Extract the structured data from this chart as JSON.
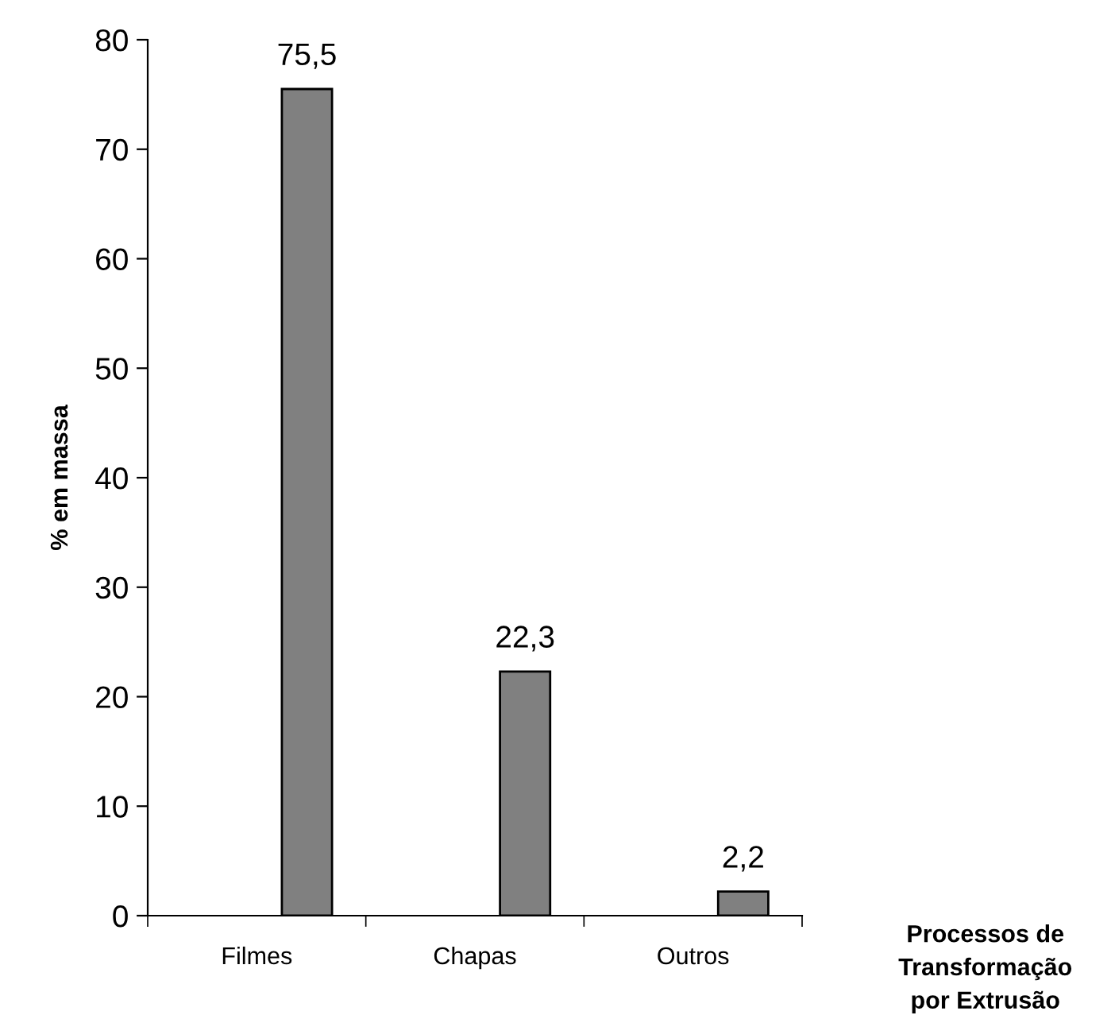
{
  "chart_data": {
    "type": "bar",
    "ylabel": "% em massa",
    "xlabel": "Processos de\nTransformação\npor Extrusão",
    "categories": [
      "Filmes",
      "Chapas",
      "Outros"
    ],
    "values": [
      75.5,
      22.3,
      2.2
    ],
    "value_labels": [
      "75,5",
      "22,3",
      "2,2"
    ],
    "color": "#808080",
    "ylim": [
      0,
      80
    ],
    "yticks": [
      0,
      10,
      20,
      30,
      40,
      50,
      60,
      70,
      80
    ],
    "grid": false,
    "legend": false
  }
}
